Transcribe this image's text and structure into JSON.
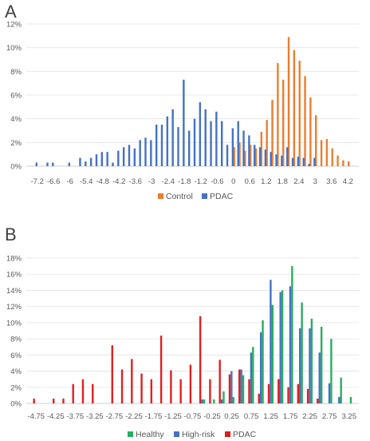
{
  "panels": {
    "a": "A",
    "b": "B"
  },
  "chart_data": [
    {
      "type": "bar",
      "ylim": [
        0,
        12
      ],
      "yticks": [
        "0%",
        "2%",
        "4%",
        "6%",
        "8%",
        "10%",
        "12%"
      ],
      "xlim": [
        -7.6,
        4.6
      ],
      "xticks": [
        "-7.2",
        "-6.6",
        "-6",
        "-5.4",
        "-4.8",
        "-4.2",
        "-3.6",
        "-3",
        "-2.4",
        "-1.8",
        "-1.2",
        "-0.6",
        "0",
        "0.6",
        "1.2",
        "1.8",
        "2.4",
        "3",
        "3.6",
        "4.2"
      ],
      "legend_position": "bottom",
      "series": [
        {
          "name": "Control",
          "color": "#ED7D31",
          "points": [
            [
              0.0,
              1.6
            ],
            [
              0.2,
              2.0
            ],
            [
              0.4,
              1.3
            ],
            [
              0.6,
              1.8
            ],
            [
              0.8,
              1.5
            ],
            [
              1.0,
              2.9
            ],
            [
              1.2,
              3.9
            ],
            [
              1.4,
              5.6
            ],
            [
              1.6,
              8.7
            ],
            [
              1.8,
              7.3
            ],
            [
              2.0,
              10.9
            ],
            [
              2.2,
              9.8
            ],
            [
              2.4,
              8.9
            ],
            [
              2.6,
              7.6
            ],
            [
              2.8,
              5.8
            ],
            [
              3.0,
              4.3
            ],
            [
              3.2,
              2.2
            ],
            [
              3.4,
              2.3
            ],
            [
              3.6,
              1.5
            ],
            [
              3.8,
              0.9
            ],
            [
              4.0,
              0.5
            ],
            [
              4.2,
              0.4
            ]
          ]
        },
        {
          "name": "PDAC",
          "color": "#4472C4",
          "points": [
            [
              -7.2,
              0.3
            ],
            [
              -6.8,
              0.3
            ],
            [
              -6.6,
              0.3
            ],
            [
              -6.0,
              0.3
            ],
            [
              -5.6,
              0.7
            ],
            [
              -5.4,
              0.4
            ],
            [
              -5.2,
              0.7
            ],
            [
              -5.0,
              1.0
            ],
            [
              -4.8,
              1.2
            ],
            [
              -4.6,
              1.2
            ],
            [
              -4.4,
              0.3
            ],
            [
              -4.2,
              1.3
            ],
            [
              -4.0,
              1.6
            ],
            [
              -3.8,
              1.8
            ],
            [
              -3.6,
              1.5
            ],
            [
              -3.4,
              2.2
            ],
            [
              -3.2,
              2.4
            ],
            [
              -3.0,
              2.2
            ],
            [
              -2.8,
              3.5
            ],
            [
              -2.6,
              3.5
            ],
            [
              -2.4,
              4.2
            ],
            [
              -2.2,
              4.8
            ],
            [
              -2.0,
              3.3
            ],
            [
              -1.8,
              7.3
            ],
            [
              -1.6,
              3.0
            ],
            [
              -1.4,
              4.0
            ],
            [
              -1.2,
              5.4
            ],
            [
              -1.0,
              4.8
            ],
            [
              -0.8,
              3.8
            ],
            [
              -0.6,
              4.6
            ],
            [
              -0.4,
              3.8
            ],
            [
              -0.2,
              1.8
            ],
            [
              0.0,
              3.2
            ],
            [
              0.2,
              3.8
            ],
            [
              0.4,
              3.0
            ],
            [
              0.6,
              2.6
            ],
            [
              0.8,
              1.8
            ],
            [
              1.0,
              1.6
            ],
            [
              1.2,
              1.4
            ],
            [
              1.4,
              1.2
            ],
            [
              1.6,
              1.0
            ],
            [
              1.8,
              0.9
            ],
            [
              2.0,
              1.6
            ],
            [
              2.2,
              0.7
            ],
            [
              2.4,
              0.8
            ],
            [
              2.6,
              0.7
            ],
            [
              2.8,
              0.2
            ],
            [
              3.0,
              0.7
            ]
          ]
        }
      ]
    },
    {
      "type": "bar",
      "ylim": [
        0,
        18
      ],
      "yticks": [
        "0%",
        "2%",
        "4%",
        "6%",
        "8%",
        "10%",
        "12%",
        "14%",
        "16%",
        "18%"
      ],
      "xlim": [
        -5.0,
        3.5
      ],
      "xticks": [
        "-4.75",
        "-4.25",
        "-3.75",
        "-3.25",
        "-2.75",
        "-2.25",
        "-1.75",
        "-1.25",
        "-0.75",
        "-0.25",
        "0.25",
        "0.75",
        "1.25",
        "1.75",
        "2.25",
        "2.75",
        "3.25"
      ],
      "legend_position": "bottom",
      "series": [
        {
          "name": "Healthy",
          "color": "#27AE60",
          "points": [
            [
              -0.5,
              0.5
            ],
            [
              -0.25,
              0.5
            ],
            [
              0.0,
              1.5
            ],
            [
              0.25,
              0.8
            ],
            [
              0.5,
              3.5
            ],
            [
              0.75,
              7.0
            ],
            [
              1.0,
              10.3
            ],
            [
              1.25,
              12.2
            ],
            [
              1.5,
              14.0
            ],
            [
              1.75,
              17.0
            ],
            [
              2.0,
              12.5
            ],
            [
              2.25,
              10.5
            ],
            [
              2.5,
              9.5
            ],
            [
              2.75,
              8.0
            ],
            [
              3.0,
              3.2
            ],
            [
              3.25,
              0.8
            ]
          ]
        },
        {
          "name": "High-risk",
          "color": "#4472C4",
          "points": [
            [
              -0.5,
              0.5
            ],
            [
              0.0,
              0.5
            ],
            [
              0.25,
              4.0
            ],
            [
              0.5,
              4.2
            ],
            [
              0.75,
              6.3
            ],
            [
              1.0,
              8.8
            ],
            [
              1.25,
              15.3
            ],
            [
              1.5,
              13.8
            ],
            [
              1.75,
              14.5
            ],
            [
              2.0,
              9.3
            ],
            [
              2.25,
              9.3
            ],
            [
              2.5,
              6.3
            ],
            [
              2.75,
              2.5
            ],
            [
              3.0,
              0.8
            ]
          ]
        },
        {
          "name": "PDAC",
          "color": "#E02020",
          "points": [
            [
              -4.75,
              0.6
            ],
            [
              -4.25,
              0.6
            ],
            [
              -4.0,
              0.6
            ],
            [
              -3.75,
              2.4
            ],
            [
              -3.5,
              3.0
            ],
            [
              -3.25,
              2.4
            ],
            [
              -2.75,
              7.2
            ],
            [
              -2.5,
              4.2
            ],
            [
              -2.25,
              5.5
            ],
            [
              -2.0,
              3.7
            ],
            [
              -1.75,
              3.0
            ],
            [
              -1.5,
              8.4
            ],
            [
              -1.25,
              4.1
            ],
            [
              -1.0,
              3.0
            ],
            [
              -0.75,
              4.8
            ],
            [
              -0.5,
              10.8
            ],
            [
              -0.25,
              3.0
            ],
            [
              0.0,
              5.4
            ],
            [
              0.25,
              3.6
            ],
            [
              0.5,
              4.2
            ],
            [
              0.75,
              3.0
            ],
            [
              1.0,
              1.2
            ],
            [
              1.25,
              2.4
            ],
            [
              1.5,
              3.0
            ],
            [
              1.75,
              2.0
            ],
            [
              2.0,
              2.4
            ],
            [
              2.25,
              1.8
            ],
            [
              2.5,
              0.6
            ]
          ]
        }
      ]
    }
  ]
}
